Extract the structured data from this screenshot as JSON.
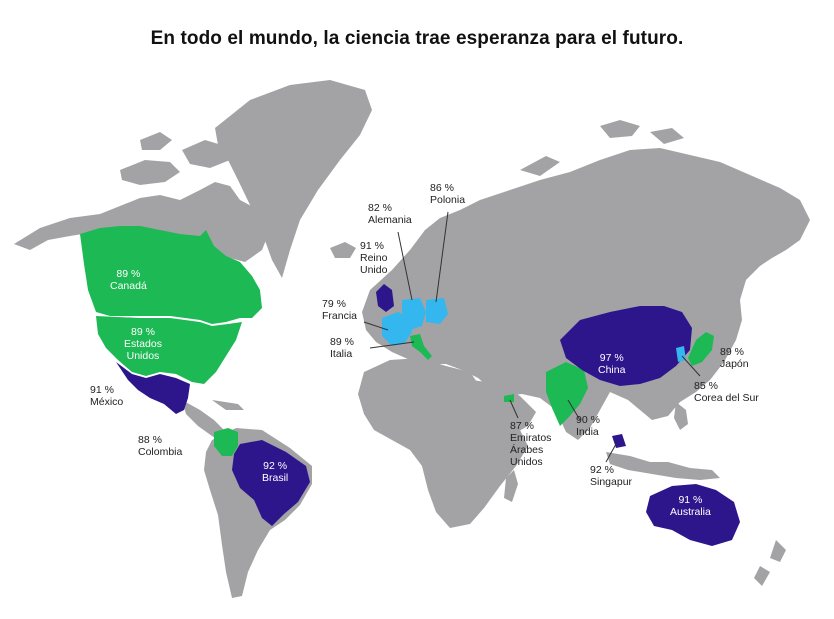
{
  "title": "En todo el mundo, la ciencia trae esperanza para el futuro.",
  "colors": {
    "land": "#a3a3a6",
    "green": "#1db954",
    "blue": "#2d168c",
    "light_blue": "#33b7ee",
    "leader": "#333333"
  },
  "countries": {
    "canada": {
      "pct": "89 %",
      "name": "Canadá",
      "color": "green"
    },
    "usa": {
      "pct": "89 %",
      "name1": "Estados",
      "name2": "Unidos",
      "color": "green"
    },
    "mexico": {
      "pct": "91 %",
      "name": "México",
      "color": "blue"
    },
    "colombia": {
      "pct": "88 %",
      "name": "Colombia",
      "color": "green"
    },
    "brazil": {
      "pct": "92 %",
      "name": "Brasil",
      "color": "blue"
    },
    "uk": {
      "pct": "91 %",
      "name1": "Reino",
      "name2": "Unido",
      "color": "blue"
    },
    "germany": {
      "pct": "82 %",
      "name": "Alemania",
      "color": "light_blue"
    },
    "poland": {
      "pct": "86 %",
      "name": "Polonia",
      "color": "light_blue"
    },
    "france": {
      "pct": "79 %",
      "name": "Francia",
      "color": "light_blue"
    },
    "italy": {
      "pct": "89 %",
      "name": "Italia",
      "color": "green"
    },
    "uae": {
      "pct": "87 %",
      "name1": "Emiratos",
      "name2": "Árabes",
      "name3": "Unidos",
      "color": "green"
    },
    "india": {
      "pct": "90 %",
      "name": "India",
      "color": "green"
    },
    "china": {
      "pct": "97 %",
      "name": "China",
      "color": "blue"
    },
    "japan": {
      "pct": "89 %",
      "name": "Japón",
      "color": "green"
    },
    "korea": {
      "pct": "85 %",
      "name": "Corea del Sur",
      "color": "light_blue"
    },
    "singapore": {
      "pct": "92 %",
      "name": "Singapur",
      "color": "blue"
    },
    "australia": {
      "pct": "91 %",
      "name": "Australia",
      "color": "blue"
    }
  }
}
